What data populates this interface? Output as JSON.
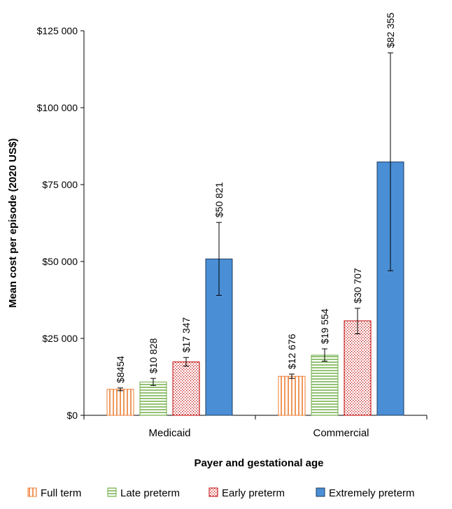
{
  "chart_data": {
    "type": "bar",
    "title": "",
    "xlabel": "Payer and gestational age",
    "ylabel": "Mean cost per episode (2020 US$)",
    "ylim": [
      0,
      125000
    ],
    "yticks": [
      0,
      25000,
      50000,
      75000,
      100000,
      125000
    ],
    "ytick_labels": [
      "$0",
      "$25 000",
      "$50 000",
      "$75 000",
      "$100 000",
      "$125 000"
    ],
    "categories": [
      "Medicaid",
      "Commercial"
    ],
    "series": [
      {
        "name": "Full term",
        "values": [
          8454,
          12676
        ],
        "labels": [
          "$8454",
          "$12 676"
        ],
        "err_low": [
          8000,
          12000
        ],
        "err_high": [
          8900,
          13400
        ],
        "color": "#ED7D31",
        "pattern": "vertical-lines"
      },
      {
        "name": "Late preterm",
        "values": [
          10828,
          19554
        ],
        "labels": [
          "$10 828",
          "$19 554"
        ],
        "err_low": [
          9700,
          17600
        ],
        "err_high": [
          12000,
          21600
        ],
        "color": "#70AD47",
        "pattern": "horizontal-lines"
      },
      {
        "name": "Early preterm",
        "values": [
          17347,
          30707
        ],
        "labels": [
          "$17 347",
          "$30 707"
        ],
        "err_low": [
          16000,
          26500
        ],
        "err_high": [
          18800,
          34800
        ],
        "color": "#C00000",
        "pattern": "dots"
      },
      {
        "name": "Extremely preterm",
        "values": [
          50821,
          82355
        ],
        "labels": [
          "$50 821",
          "$82 355"
        ],
        "err_low": [
          39000,
          47000
        ],
        "err_high": [
          62700,
          117800
        ],
        "color": "#4A8FD6",
        "pattern": "solid"
      }
    ],
    "legend_position": "bottom",
    "grid": false
  }
}
